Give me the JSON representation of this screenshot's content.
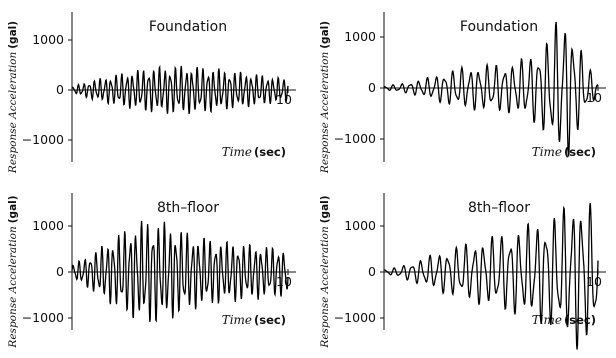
{
  "chart_data": [
    {
      "type": "line",
      "title": "Foundation",
      "ylabel_text": "Response Acceleration",
      "ylabel_unit": "(gal)",
      "xlabel_text": "Time",
      "xlabel_unit": "(sec)",
      "y_ticks": [
        1000,
        0,
        -1000
      ],
      "y_tick_labels": [
        "1000",
        "0",
        "-1000"
      ],
      "x_tick_label": "10",
      "x_tick_value": 10,
      "xlim": [
        0,
        10
      ],
      "ylim": [
        -1400,
        1500
      ],
      "grid": false,
      "series": [
        {
          "t": [
            0.0,
            0.5,
            1.0,
            1.5,
            2.0,
            2.5,
            3.0,
            3.5,
            4.0,
            4.5,
            5.0,
            5.5,
            6.0,
            6.5,
            7.0,
            7.5,
            8.0,
            8.5,
            9.0,
            9.5,
            10.0
          ],
          "envelope": [
            60,
            120,
            180,
            230,
            280,
            320,
            360,
            400,
            420,
            430,
            440,
            430,
            420,
            400,
            370,
            340,
            320,
            290,
            260,
            230,
            200
          ],
          "cycles": 40,
          "phase": 0.3
        }
      ]
    },
    {
      "type": "line",
      "title": "Foundation",
      "ylabel_text": "Response Acceleration",
      "ylabel_unit": "(gal)",
      "xlabel_text": "Time",
      "xlabel_unit": "(sec)",
      "y_ticks": [
        1000,
        0,
        -1000
      ],
      "y_tick_labels": [
        "1000",
        "0",
        "-1000"
      ],
      "x_tick_label": "10",
      "x_tick_value": 10,
      "xlim": [
        0,
        10
      ],
      "ylim": [
        -1400,
        1500
      ],
      "grid": false,
      "series": [
        {
          "t": [
            0.0,
            0.5,
            1.0,
            1.5,
            2.0,
            2.5,
            3.0,
            3.5,
            4.0,
            4.5,
            5.0,
            5.5,
            6.0,
            6.5,
            7.0,
            7.5,
            8.0,
            8.5,
            9.0,
            9.5,
            10.0
          ],
          "envelope": [
            40,
            60,
            90,
            130,
            180,
            240,
            300,
            360,
            380,
            400,
            420,
            430,
            450,
            520,
            620,
            800,
            1150,
            1300,
            900,
            400,
            150
          ],
          "cycles": 25,
          "phase": 1.1
        }
      ]
    },
    {
      "type": "line",
      "title": "8th-floor",
      "ylabel_text": "Response Acceleration",
      "ylabel_unit": "(gal)",
      "xlabel_text": "Time",
      "xlabel_unit": "(sec)",
      "y_ticks": [
        1000,
        0,
        -1000
      ],
      "y_tick_labels": [
        "1000",
        "0",
        "-1000"
      ],
      "x_tick_label": "10",
      "x_tick_value": 10,
      "xlim": [
        0,
        10
      ],
      "ylim": [
        -1400,
        1500
      ],
      "grid": false,
      "series": [
        {
          "t": [
            0.0,
            0.5,
            1.0,
            1.5,
            2.0,
            2.5,
            3.0,
            3.5,
            4.0,
            4.5,
            5.0,
            5.5,
            6.0,
            6.5,
            7.0,
            7.5,
            8.0,
            8.5,
            9.0,
            9.5,
            10.0
          ],
          "envelope": [
            150,
            250,
            400,
            550,
            700,
            850,
            950,
            1050,
            1000,
            950,
            850,
            750,
            700,
            650,
            600,
            600,
            550,
            550,
            500,
            500,
            450
          ],
          "cycles": 38,
          "phase": 0.0
        }
      ]
    },
    {
      "type": "line",
      "title": "8th-floor",
      "ylabel_text": "Response Acceleration",
      "ylabel_unit": "(gal)",
      "xlabel_text": "Time",
      "xlabel_unit": "(sec)",
      "y_ticks": [
        1000,
        0,
        -1000
      ],
      "y_tick_labels": [
        "1000",
        "0",
        "-1000"
      ],
      "x_tick_label": "10",
      "x_tick_value": 10,
      "xlim": [
        0,
        10
      ],
      "ylim": [
        -1400,
        1700
      ],
      "grid": false,
      "series": [
        {
          "t": [
            0.0,
            0.5,
            1.0,
            1.5,
            2.0,
            2.5,
            3.0,
            3.5,
            4.0,
            4.5,
            5.0,
            5.5,
            6.0,
            6.5,
            7.0,
            7.5,
            8.0,
            8.5,
            9.0,
            9.5,
            10.0
          ],
          "envelope": [
            50,
            80,
            150,
            220,
            300,
            380,
            450,
            520,
            580,
            640,
            700,
            760,
            820,
            900,
            980,
            1050,
            1150,
            1300,
            1500,
            1450,
            1200
          ],
          "cycles": 24,
          "phase": 0.6
        }
      ]
    }
  ]
}
